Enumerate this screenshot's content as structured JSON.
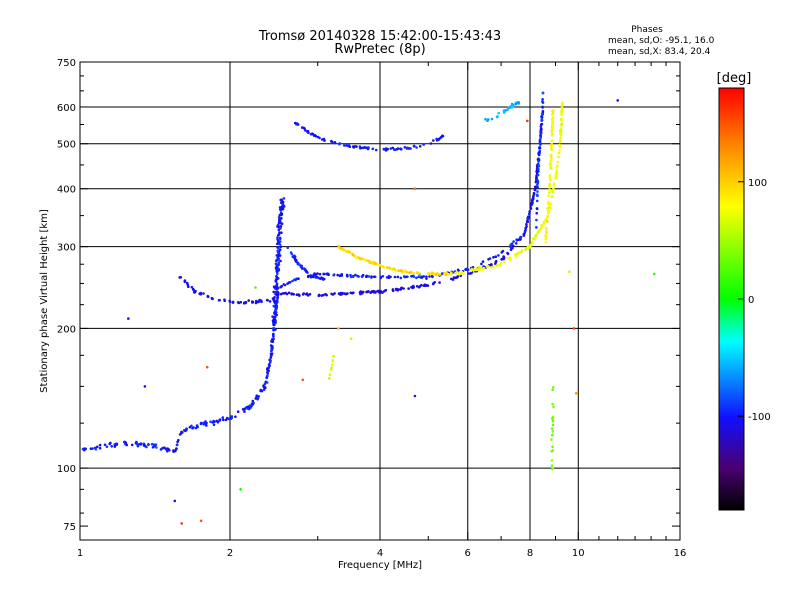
{
  "header": {
    "title": "Tromsø 20140328 15:42:00-15:43:43",
    "subtitle": "RwPretec (8p)"
  },
  "phases_box": {
    "title": "Phases",
    "line_o": "mean, sd,O: -95.1, 16.0",
    "line_x": "mean, sd,X: 83.4, 20.4"
  },
  "colorbar": {
    "label": "[deg]",
    "ticks": [
      {
        "value": 100,
        "label": "100"
      },
      {
        "value": 0,
        "label": "0"
      },
      {
        "value": -100,
        "label": "-100"
      }
    ],
    "range": [
      -180,
      180
    ]
  },
  "chart_data": {
    "type": "scatter",
    "title": "Tromsø 20140328 15:42:00-15:43:43",
    "subtitle": "RwPretec (8p)",
    "xlabel": "Frequency [MHz]",
    "ylabel": "Stationary phase Virtual Height [km]",
    "x_scale": "log",
    "y_scale": "log",
    "xlim": [
      1,
      16
    ],
    "ylim": [
      70,
      750
    ],
    "x_ticks": [
      {
        "value": 1,
        "label": "1"
      },
      {
        "value": 2,
        "label": "2"
      },
      {
        "value": 4,
        "label": "4"
      },
      {
        "value": 6,
        "label": "6"
      },
      {
        "value": 8,
        "label": "8"
      },
      {
        "value": 10,
        "label": "10"
      },
      {
        "value": 16,
        "label": "16"
      }
    ],
    "x_grid": [
      2,
      4,
      6,
      8,
      10
    ],
    "y_ticks": [
      {
        "value": 75,
        "label": "75"
      },
      {
        "value": 100,
        "label": "100"
      },
      {
        "value": 200,
        "label": "200"
      },
      {
        "value": 300,
        "label": "300"
      },
      {
        "value": 400,
        "label": "400"
      },
      {
        "value": 500,
        "label": "500"
      },
      {
        "value": 600,
        "label": "600"
      },
      {
        "value": 750,
        "label": "750"
      }
    ],
    "y_grid": [
      100,
      200,
      300,
      400,
      500,
      600
    ],
    "grid": true,
    "color_scale": "phase [deg], -180 (black) to +180 (red)",
    "series": [
      {
        "polyline": [
          [
            1.0,
            110
          ],
          [
            1.2,
            113
          ],
          [
            1.4,
            112
          ],
          [
            1.55,
            108
          ],
          [
            1.6,
            120
          ],
          [
            1.8,
            125
          ],
          [
            2.0,
            128
          ],
          [
            2.2,
            136
          ],
          [
            2.35,
            150
          ],
          [
            2.42,
            175
          ],
          [
            2.46,
            210
          ],
          [
            2.5,
            245
          ]
        ],
        "phase": -100,
        "spread_f": 0.006,
        "spread_h": 0.018,
        "n": 240
      },
      {
        "polyline": [
          [
            2.45,
            200
          ],
          [
            2.47,
            240
          ],
          [
            2.5,
            290
          ],
          [
            2.52,
            340
          ],
          [
            2.55,
            380
          ]
        ],
        "phase": -100,
        "spread_f": 0.014,
        "spread_h": 0.02,
        "n": 170
      },
      {
        "polyline": [
          [
            1.55,
            265
          ],
          [
            1.7,
            240
          ],
          [
            1.85,
            232
          ],
          [
            2.0,
            228
          ],
          [
            2.2,
            228
          ],
          [
            2.45,
            230
          ]
        ],
        "phase": -105,
        "spread_f": 0.004,
        "spread_h": 0.01,
        "n": 55
      },
      {
        "polyline": [
          [
            2.45,
            238
          ],
          [
            3.0,
            236
          ],
          [
            4.0,
            240
          ],
          [
            5.0,
            248
          ],
          [
            6.0,
            262
          ],
          [
            7.0,
            280
          ],
          [
            7.8,
            320
          ],
          [
            8.2,
            400
          ],
          [
            8.4,
            520
          ],
          [
            8.5,
            600
          ]
        ],
        "phase": -110,
        "spread_f": 0.003,
        "spread_h": 0.009,
        "n": 240
      },
      {
        "polyline": [
          [
            2.5,
            245
          ],
          [
            2.7,
            255
          ],
          [
            3.0,
            262
          ],
          [
            4.0,
            258
          ],
          [
            5.0,
            258
          ],
          [
            6.0,
            268
          ],
          [
            7.0,
            290
          ],
          [
            7.8,
            320
          ],
          [
            8.1,
            380
          ]
        ],
        "phase": -100,
        "spread_f": 0.003,
        "spread_h": 0.009,
        "n": 150
      },
      {
        "polyline": [
          [
            2.6,
            300
          ],
          [
            2.75,
            275
          ],
          [
            2.9,
            260
          ],
          [
            3.1,
            255
          ]
        ],
        "phase": -100,
        "spread_f": 0.006,
        "spread_h": 0.01,
        "n": 40
      },
      {
        "polyline": [
          [
            2.7,
            555
          ],
          [
            3.0,
            515
          ],
          [
            3.4,
            495
          ],
          [
            4.0,
            485
          ],
          [
            4.6,
            490
          ],
          [
            5.0,
            500
          ],
          [
            5.4,
            520
          ]
        ],
        "phase": -100,
        "spread_f": 0.004,
        "spread_h": 0.009,
        "n": 90
      },
      {
        "polyline": [
          [
            3.3,
            300
          ],
          [
            3.6,
            285
          ],
          [
            4.0,
            273
          ],
          [
            4.5,
            265
          ],
          [
            5.0,
            262
          ],
          [
            5.5,
            262
          ]
        ],
        "phase": 95,
        "spread_f": 0.004,
        "spread_h": 0.008,
        "n": 100
      },
      {
        "polyline": [
          [
            5.5,
            262
          ],
          [
            6.0,
            265
          ],
          [
            7.0,
            275
          ],
          [
            8.0,
            300
          ],
          [
            8.7,
            350
          ],
          [
            9.0,
            420
          ],
          [
            9.2,
            500
          ],
          [
            9.3,
            620
          ]
        ],
        "phase": 75,
        "spread_f": 0.005,
        "spread_h": 0.012,
        "n": 160
      },
      {
        "polyline": [
          [
            8.6,
            310
          ],
          [
            8.75,
            400
          ],
          [
            8.85,
            500
          ],
          [
            8.9,
            600
          ]
        ],
        "phase": 80,
        "spread_f": 0.004,
        "spread_h": 0.02,
        "n": 80
      },
      {
        "polyline": [
          [
            6.5,
            560
          ],
          [
            7.0,
            580
          ],
          [
            7.3,
            600
          ],
          [
            7.6,
            615
          ]
        ],
        "phase": -60,
        "spread_f": 0.005,
        "spread_h": 0.012,
        "n": 30
      },
      {
        "polyline": [
          [
            8.2,
            300
          ],
          [
            8.3,
            420
          ],
          [
            8.4,
            520
          ],
          [
            8.5,
            640
          ]
        ],
        "phase": -90,
        "spread_f": 0.003,
        "spread_h": 0.02,
        "n": 50
      },
      {
        "polyline": [
          [
            3.15,
            155
          ],
          [
            3.2,
            165
          ],
          [
            3.25,
            180
          ]
        ],
        "phase": 70,
        "spread_f": 0.003,
        "spread_h": 0.01,
        "n": 10
      },
      {
        "polyline": [
          [
            8.85,
            95
          ],
          [
            8.9,
            140
          ],
          [
            8.95,
            165
          ],
          [
            9.1,
            190
          ]
        ],
        "phase": 40,
        "spread_f": 0.006,
        "spread_h": 0.03,
        "n": 20
      }
    ],
    "isolated_points": [
      {
        "x": 1.25,
        "y": 210,
        "phase": -100
      },
      {
        "x": 1.35,
        "y": 150,
        "phase": -100
      },
      {
        "x": 1.55,
        "y": 85,
        "phase": -120
      },
      {
        "x": 1.6,
        "y": 76,
        "phase": 160
      },
      {
        "x": 1.75,
        "y": 77,
        "phase": 150
      },
      {
        "x": 1.8,
        "y": 165,
        "phase": 150
      },
      {
        "x": 2.1,
        "y": 90,
        "phase": 0
      },
      {
        "x": 2.25,
        "y": 245,
        "phase": 20
      },
      {
        "x": 2.8,
        "y": 155,
        "phase": 150
      },
      {
        "x": 3.3,
        "y": 200,
        "phase": 110
      },
      {
        "x": 3.5,
        "y": 190,
        "phase": 60
      },
      {
        "x": 4.7,
        "y": 400,
        "phase": 140
      },
      {
        "x": 4.7,
        "y": 143,
        "phase": -100
      },
      {
        "x": 4.8,
        "y": 260,
        "phase": -60
      },
      {
        "x": 9.6,
        "y": 265,
        "phase": 60
      },
      {
        "x": 9.8,
        "y": 200,
        "phase": 160
      },
      {
        "x": 12.0,
        "y": 620,
        "phase": -110
      },
      {
        "x": 14.2,
        "y": 262,
        "phase": 10
      },
      {
        "x": 7.9,
        "y": 560,
        "phase": 160
      },
      {
        "x": 9.9,
        "y": 145,
        "phase": 120
      }
    ]
  }
}
